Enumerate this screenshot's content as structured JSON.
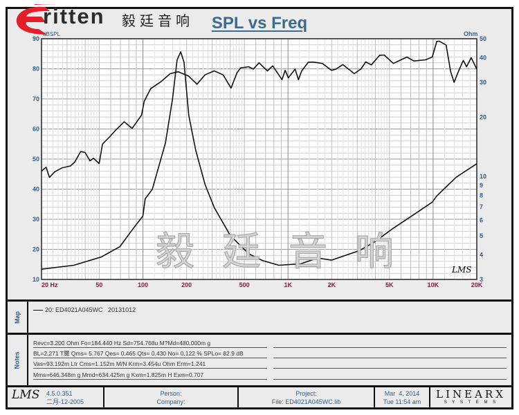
{
  "logo": {
    "brand": "ritten",
    "chinese": "毅廷音响"
  },
  "watermark": "毅廷音响",
  "chart_data": {
    "type": "line",
    "title": "SPL vs Freq",
    "ylabel": "dBSPL",
    "y2label": "Ohm",
    "xscale": "log",
    "xlim": [
      20,
      20000
    ],
    "ylim": [
      10,
      90
    ],
    "y2scale": "log",
    "y2lim": [
      3,
      50
    ],
    "grid": true,
    "xticks": [
      "20 Hz",
      "50",
      "100",
      "200",
      "500",
      "1K",
      "2K",
      "5K",
      "10K",
      "20K"
    ],
    "xtick_values": [
      20,
      50,
      100,
      200,
      500,
      1000,
      2000,
      5000,
      10000,
      20000
    ],
    "yticks": [
      "10",
      "20",
      "30",
      "40",
      "50",
      "60",
      "70",
      "80",
      "90"
    ],
    "y2ticks": [
      "50",
      "40",
      "30",
      "20",
      "10",
      "9",
      "8",
      "7",
      "6",
      "5",
      "4",
      "3"
    ],
    "series": [
      {
        "axis": "left",
        "color": "#111111",
        "points": [
          [
            20,
            46.0
          ],
          [
            21.5,
            47.3
          ],
          [
            22.7,
            43.9
          ],
          [
            24.7,
            45.8
          ],
          [
            27.8,
            47.1
          ],
          [
            31.6,
            47.7
          ],
          [
            33.9,
            49
          ],
          [
            37.2,
            52.5
          ],
          [
            39.9,
            52.2
          ],
          [
            43.2,
            49.4
          ],
          [
            45.6,
            50.3
          ],
          [
            49.9,
            48.5
          ],
          [
            52.6,
            55
          ],
          [
            59.8,
            57.7
          ],
          [
            64.3,
            59.4
          ],
          [
            74.3,
            62.4
          ],
          [
            84.3,
            60.2
          ],
          [
            97.8,
            64.6
          ],
          [
            102,
            69.2
          ],
          [
            113,
            73.4
          ],
          [
            133,
            75.7
          ],
          [
            154,
            78.4
          ],
          [
            175,
            79
          ],
          [
            206,
            77.6
          ],
          [
            236,
            74.9
          ],
          [
            268,
            78
          ],
          [
            310,
            79.3
          ],
          [
            357,
            78
          ],
          [
            405,
            73.6
          ],
          [
            445,
            78.7
          ],
          [
            471,
            80.3
          ],
          [
            536,
            80.7
          ],
          [
            576,
            79.9
          ],
          [
            632,
            82
          ],
          [
            721,
            79.3
          ],
          [
            784,
            81
          ],
          [
            909,
            76.4
          ],
          [
            956,
            79.5
          ],
          [
            1005,
            77
          ],
          [
            1120,
            79.9
          ],
          [
            1180,
            76.4
          ],
          [
            1243,
            79.3
          ],
          [
            1381,
            82.2
          ],
          [
            1517,
            82.2
          ],
          [
            1724,
            81.8
          ],
          [
            1995,
            79.5
          ],
          [
            2140,
            79.9
          ],
          [
            2385,
            81.4
          ],
          [
            2863,
            78.4
          ],
          [
            3190,
            80
          ],
          [
            3432,
            82.3
          ],
          [
            3750,
            81.3
          ],
          [
            4280,
            84.5
          ],
          [
            4600,
            84.6
          ],
          [
            5320,
            81.8
          ],
          [
            6600,
            83.9
          ],
          [
            7380,
            82.6
          ],
          [
            8850,
            83
          ],
          [
            9860,
            83.9
          ],
          [
            10600,
            89.1
          ],
          [
            11000,
            89.2
          ],
          [
            12300,
            87.9
          ],
          [
            13200,
            79.1
          ],
          [
            13950,
            75.5
          ],
          [
            15000,
            79.3
          ],
          [
            16150,
            82.8
          ],
          [
            17000,
            80.7
          ],
          [
            18300,
            83.7
          ],
          [
            20000,
            79.9
          ]
        ]
      },
      {
        "axis": "right",
        "color": "#111111",
        "points": [
          [
            20,
            3.38
          ],
          [
            33.4,
            3.54
          ],
          [
            51.7,
            3.9
          ],
          [
            69.4,
            4.4
          ],
          [
            81.8,
            5.2
          ],
          [
            99.9,
            6.3
          ],
          [
            103.6,
            7.7
          ],
          [
            116,
            8.6
          ],
          [
            143,
            14.8
          ],
          [
            160,
            24.7
          ],
          [
            172,
            39
          ],
          [
            182,
            42.9
          ],
          [
            192,
            38
          ],
          [
            207,
            20.4
          ],
          [
            231,
            13.6
          ],
          [
            268,
            9.1
          ],
          [
            310,
            6.95
          ],
          [
            401,
            5.0
          ],
          [
            536,
            4.05
          ],
          [
            667,
            3.74
          ],
          [
            864,
            3.54
          ],
          [
            1223,
            3.6
          ],
          [
            1600,
            3.85
          ],
          [
            1995,
            3.76
          ],
          [
            3100,
            4.2
          ],
          [
            3950,
            4.65
          ],
          [
            5320,
            5.46
          ],
          [
            7130,
            6.3
          ],
          [
            9860,
            7.4
          ],
          [
            10600,
            7.96
          ],
          [
            14400,
            9.9
          ],
          [
            20000,
            11.6
          ]
        ]
      }
    ]
  },
  "plot_mark": "LMS",
  "map": {
    "label": "Map",
    "legend": "20: ED4021A045WC   20131012"
  },
  "notes": {
    "label": "Notes",
    "lines": [
      "Revc=3.200 Ohm  Fo=184.440 Hz  Sd=754.768u M?Md=480.000m g",
      "BL=2.271 T黡  Qms= 5.767  Qes= 0.465  Qts= 0.430  No= 0.122 %  SPLo= 82.9 dB",
      "Vas=93.192m Ltr  Cms=1.152m M/N  Krm=3.454u Ohm  Erm=1.241",
      "Mms=646.348m g  Mmd=634.425m g  Kxm=1.825m H  Exm=0.707"
    ]
  },
  "footer": {
    "lms": "LMS",
    "version": "4.5.0.351",
    "version_date": "二月-12-2005",
    "person": "Person:",
    "company": "Company:",
    "project": "Project:",
    "file": "File: ED4021A045WC.lib",
    "date": "Mar  4, 2014",
    "time": "Tue 11:54 am",
    "brand": "LINEARX",
    "brand_sub": "S Y S T E M S"
  }
}
